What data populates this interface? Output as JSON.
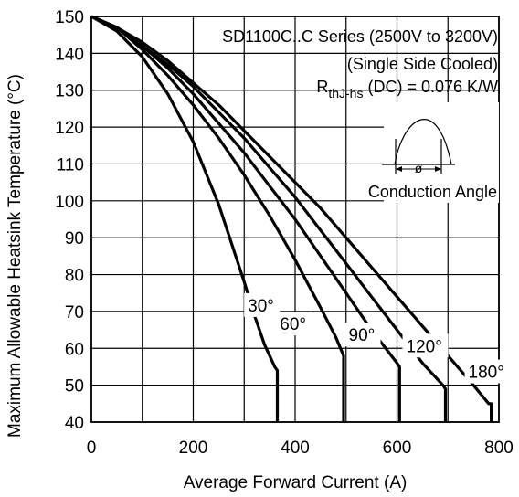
{
  "chart_data": {
    "type": "line",
    "title": "SD1100C..C Series (2500V to 3200V)",
    "subtitle": "(Single Side Cooled)",
    "annotation": {
      "r_main": "R",
      "r_sub": "thJ-hs",
      "r_rest": " (DC) = 0.076 K/W"
    },
    "inset_caption": "Conduction Angle",
    "inset_symbol": "ø",
    "xlabel": "Average Forward Current (A)",
    "ylabel": "Maximum Allowable Heatsink Temperature (°C)",
    "xlim": [
      0,
      800
    ],
    "ylim": [
      40,
      150
    ],
    "x_ticks": [
      0,
      200,
      400,
      600,
      800
    ],
    "y_ticks": [
      40,
      50,
      60,
      70,
      80,
      90,
      100,
      110,
      120,
      130,
      140,
      150
    ],
    "grid": true,
    "series": [
      {
        "name": "30°",
        "points": [
          [
            0,
            150
          ],
          [
            50,
            146
          ],
          [
            100,
            139
          ],
          [
            150,
            129
          ],
          [
            200,
            116
          ],
          [
            250,
            99
          ],
          [
            300,
            78
          ],
          [
            320,
            69
          ],
          [
            340,
            61
          ],
          [
            360,
            55
          ],
          [
            365,
            54
          ],
          [
            365,
            40
          ]
        ]
      },
      {
        "name": "60°",
        "points": [
          [
            0,
            150
          ],
          [
            50,
            147
          ],
          [
            100,
            141
          ],
          [
            150,
            134
          ],
          [
            200,
            126
          ],
          [
            250,
            117
          ],
          [
            300,
            107
          ],
          [
            350,
            96
          ],
          [
            400,
            84
          ],
          [
            450,
            71
          ],
          [
            480,
            63
          ],
          [
            495,
            58
          ],
          [
            495,
            40
          ]
        ]
      },
      {
        "name": "90°",
        "points": [
          [
            0,
            150
          ],
          [
            50,
            147
          ],
          [
            100,
            142
          ],
          [
            150,
            136
          ],
          [
            200,
            129
          ],
          [
            250,
            121
          ],
          [
            300,
            113
          ],
          [
            350,
            104
          ],
          [
            400,
            95
          ],
          [
            450,
            85
          ],
          [
            500,
            75
          ],
          [
            550,
            65
          ],
          [
            600,
            56
          ],
          [
            605,
            55
          ],
          [
            605,
            40
          ]
        ]
      },
      {
        "name": "120°",
        "points": [
          [
            0,
            150
          ],
          [
            50,
            147
          ],
          [
            100,
            142
          ],
          [
            150,
            137
          ],
          [
            200,
            131
          ],
          [
            250,
            124
          ],
          [
            300,
            117
          ],
          [
            350,
            109
          ],
          [
            400,
            101
          ],
          [
            450,
            92
          ],
          [
            500,
            83
          ],
          [
            550,
            74
          ],
          [
            600,
            65
          ],
          [
            650,
            56
          ],
          [
            690,
            50
          ],
          [
            695,
            49
          ],
          [
            695,
            40
          ]
        ]
      },
      {
        "name": "180°",
        "points": [
          [
            0,
            150
          ],
          [
            50,
            147
          ],
          [
            100,
            143
          ],
          [
            150,
            138
          ],
          [
            200,
            132
          ],
          [
            250,
            126
          ],
          [
            300,
            119
          ],
          [
            350,
            112
          ],
          [
            400,
            105
          ],
          [
            450,
            98
          ],
          [
            500,
            90
          ],
          [
            550,
            82
          ],
          [
            600,
            74
          ],
          [
            650,
            66
          ],
          [
            700,
            58
          ],
          [
            750,
            50
          ],
          [
            780,
            45
          ],
          [
            785,
            45
          ],
          [
            785,
            40
          ]
        ]
      }
    ]
  }
}
